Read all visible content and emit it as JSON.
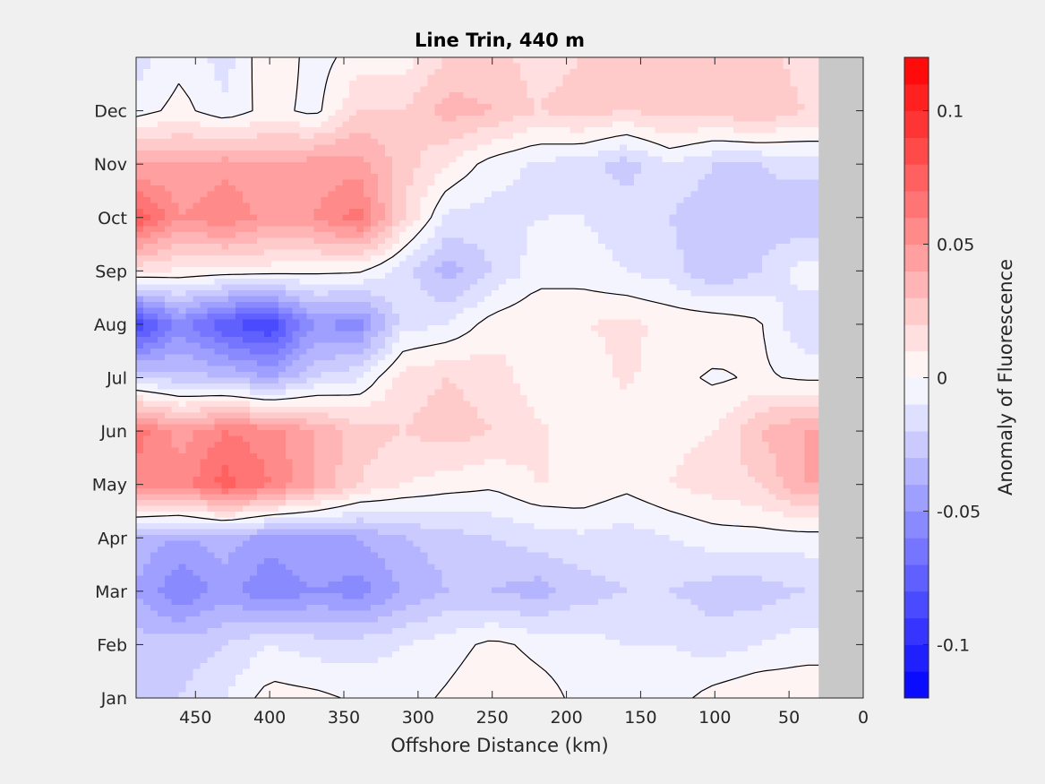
{
  "chart_data": {
    "type": "heatmap",
    "subtype": "filled-contour",
    "title": "Line Trin, 440 m",
    "xlabel": "Offshore Distance (km)",
    "ylabel": "",
    "x_axis": {
      "lim": [
        490,
        0
      ],
      "reversed": true,
      "ticks": [
        450,
        400,
        350,
        300,
        250,
        200,
        150,
        100,
        50,
        0
      ],
      "tick_labels": [
        "450",
        "400",
        "350",
        "300",
        "250",
        "200",
        "150",
        "100",
        "50",
        "0"
      ]
    },
    "y_axis": {
      "lim_month": [
        1,
        13
      ],
      "ticks": [
        1,
        2,
        3,
        4,
        5,
        6,
        7,
        8,
        9,
        10,
        11,
        12
      ],
      "tick_labels": [
        "Jan",
        "Feb",
        "Mar",
        "Apr",
        "May",
        "Jun",
        "Jul",
        "Aug",
        "Sep",
        "Oct",
        "Nov",
        "Dec"
      ]
    },
    "colorbar": {
      "label": "Anomaly of Fluorescence",
      "range": [
        -0.12,
        0.12
      ],
      "ticks": [
        -0.1,
        -0.05,
        0,
        0.05,
        0.1
      ],
      "tick_labels": [
        "-0.1",
        "-0.05",
        "0",
        "0.05",
        "0.1"
      ],
      "levels": 24,
      "colormap": "blue-white-red",
      "neg_color": "#0000ff",
      "pos_color": "#ff0000"
    },
    "no_data_region_km": [
      30,
      0
    ],
    "no_data_color": "#c8c8c8",
    "zero_contour_color": "#000000",
    "grid": false,
    "x_km": [
      490,
      460,
      430,
      400,
      370,
      340,
      310,
      280,
      250,
      220,
      190,
      160,
      130,
      100,
      70,
      40
    ],
    "month_rows": [
      {
        "month": "Jan",
        "values": [
          -0.025,
          -0.02,
          -0.01,
          0.005,
          0.003,
          -0.002,
          -0.005,
          0.002,
          0.01,
          0.005,
          -0.003,
          -0.004,
          -0.005,
          0.005,
          0.01,
          0.008
        ]
      },
      {
        "month": "Feb",
        "values": [
          -0.025,
          -0.025,
          -0.02,
          -0.01,
          -0.015,
          -0.015,
          -0.01,
          -0.005,
          0.003,
          -0.003,
          -0.005,
          -0.01,
          -0.01,
          -0.015,
          -0.01,
          -0.005
        ]
      },
      {
        "month": "Mar",
        "values": [
          -0.04,
          -0.06,
          -0.045,
          -0.06,
          -0.05,
          -0.055,
          -0.04,
          -0.03,
          -0.03,
          -0.035,
          -0.025,
          -0.02,
          -0.02,
          -0.025,
          -0.025,
          -0.02
        ]
      },
      {
        "month": "Apr",
        "values": [
          -0.035,
          -0.04,
          -0.035,
          -0.045,
          -0.04,
          -0.04,
          -0.03,
          -0.025,
          -0.02,
          -0.015,
          -0.012,
          -0.015,
          -0.01,
          -0.005,
          -0.005,
          -0.005
        ]
      },
      {
        "month": "May",
        "values": [
          0.055,
          0.055,
          0.075,
          0.06,
          0.04,
          0.02,
          0.01,
          0.005,
          0.002,
          0.01,
          0.01,
          0.003,
          0.01,
          0.015,
          0.02,
          0.04
        ]
      },
      {
        "month": "Jun",
        "values": [
          0.065,
          0.045,
          0.06,
          0.055,
          0.04,
          0.025,
          0.02,
          0.025,
          0.02,
          0.012,
          0.005,
          0.003,
          0.008,
          0.01,
          0.03,
          0.04
        ]
      },
      {
        "month": "Jul",
        "values": [
          -0.02,
          -0.025,
          -0.03,
          -0.04,
          -0.02,
          -0.012,
          0.015,
          0.02,
          0.015,
          0.005,
          0.004,
          0.012,
          0.004,
          -0.002,
          0.002,
          -0.002
        ]
      },
      {
        "month": "Aug",
        "values": [
          -0.09,
          -0.055,
          -0.08,
          -0.09,
          -0.05,
          -0.055,
          -0.015,
          -0.01,
          0.005,
          0.01,
          0.01,
          0.012,
          0.008,
          0.008,
          0.002,
          -0.02
        ]
      },
      {
        "month": "Sep",
        "values": [
          0.012,
          0.008,
          0.006,
          0.005,
          0.003,
          0.002,
          -0.015,
          -0.035,
          -0.02,
          -0.005,
          -0.005,
          -0.01,
          -0.015,
          -0.03,
          -0.02,
          -0.005
        ]
      },
      {
        "month": "Oct",
        "values": [
          0.08,
          0.05,
          0.06,
          0.045,
          0.05,
          0.065,
          0.02,
          -0.012,
          -0.015,
          -0.01,
          -0.01,
          -0.015,
          -0.02,
          -0.03,
          -0.025,
          -0.03
        ]
      },
      {
        "month": "Nov",
        "values": [
          0.04,
          0.04,
          0.045,
          0.04,
          0.045,
          0.045,
          0.025,
          0.01,
          -0.005,
          -0.012,
          -0.015,
          -0.025,
          -0.01,
          -0.02,
          -0.02,
          -0.015
        ]
      },
      {
        "month": "Dec",
        "values": [
          -0.005,
          0.004,
          -0.008,
          0.005,
          -0.004,
          0.02,
          0.02,
          0.035,
          0.03,
          0.02,
          0.025,
          0.02,
          0.025,
          0.025,
          0.03,
          0.02
        ]
      },
      {
        "month": "Jan",
        "values": [
          -0.015,
          -0.003,
          -0.015,
          0.01,
          -0.005,
          0.005,
          0.005,
          0.02,
          0.025,
          0.015,
          0.02,
          0.02,
          0.02,
          0.02,
          0.025,
          0.015
        ]
      }
    ]
  }
}
